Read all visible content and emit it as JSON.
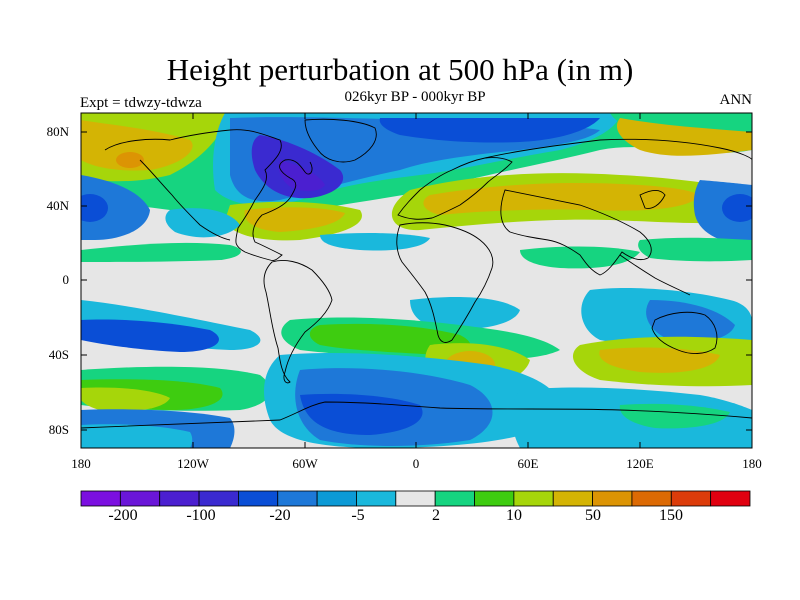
{
  "title": "Height perturbation at 500 hPa (in m)",
  "subtitle": "026kyr BP - 000kyr BP",
  "left_label": "Expt = tdwzy-tdwza",
  "right_label": "ANN",
  "lat_labels": [
    "80N",
    "40N",
    "0",
    "40S",
    "80S"
  ],
  "lon_labels": [
    "180",
    "120W",
    "60W",
    "0",
    "60E",
    "120E",
    "180"
  ],
  "colorbar": {
    "colors": [
      "#7b0fe0",
      "#6a16d8",
      "#4b1fd0",
      "#3a2ad0",
      "#0a4ed6",
      "#1e78d8",
      "#0c9ad6",
      "#1ab8dc",
      "#e6e6e6",
      "#16d480",
      "#3ecc10",
      "#a6d60a",
      "#d4b404",
      "#dc9404",
      "#dc6a04",
      "#dc3c0a",
      "#e00010"
    ],
    "labels": [
      "-200",
      "-100",
      "-20",
      "-5",
      "2",
      "10",
      "50",
      "150"
    ]
  }
}
